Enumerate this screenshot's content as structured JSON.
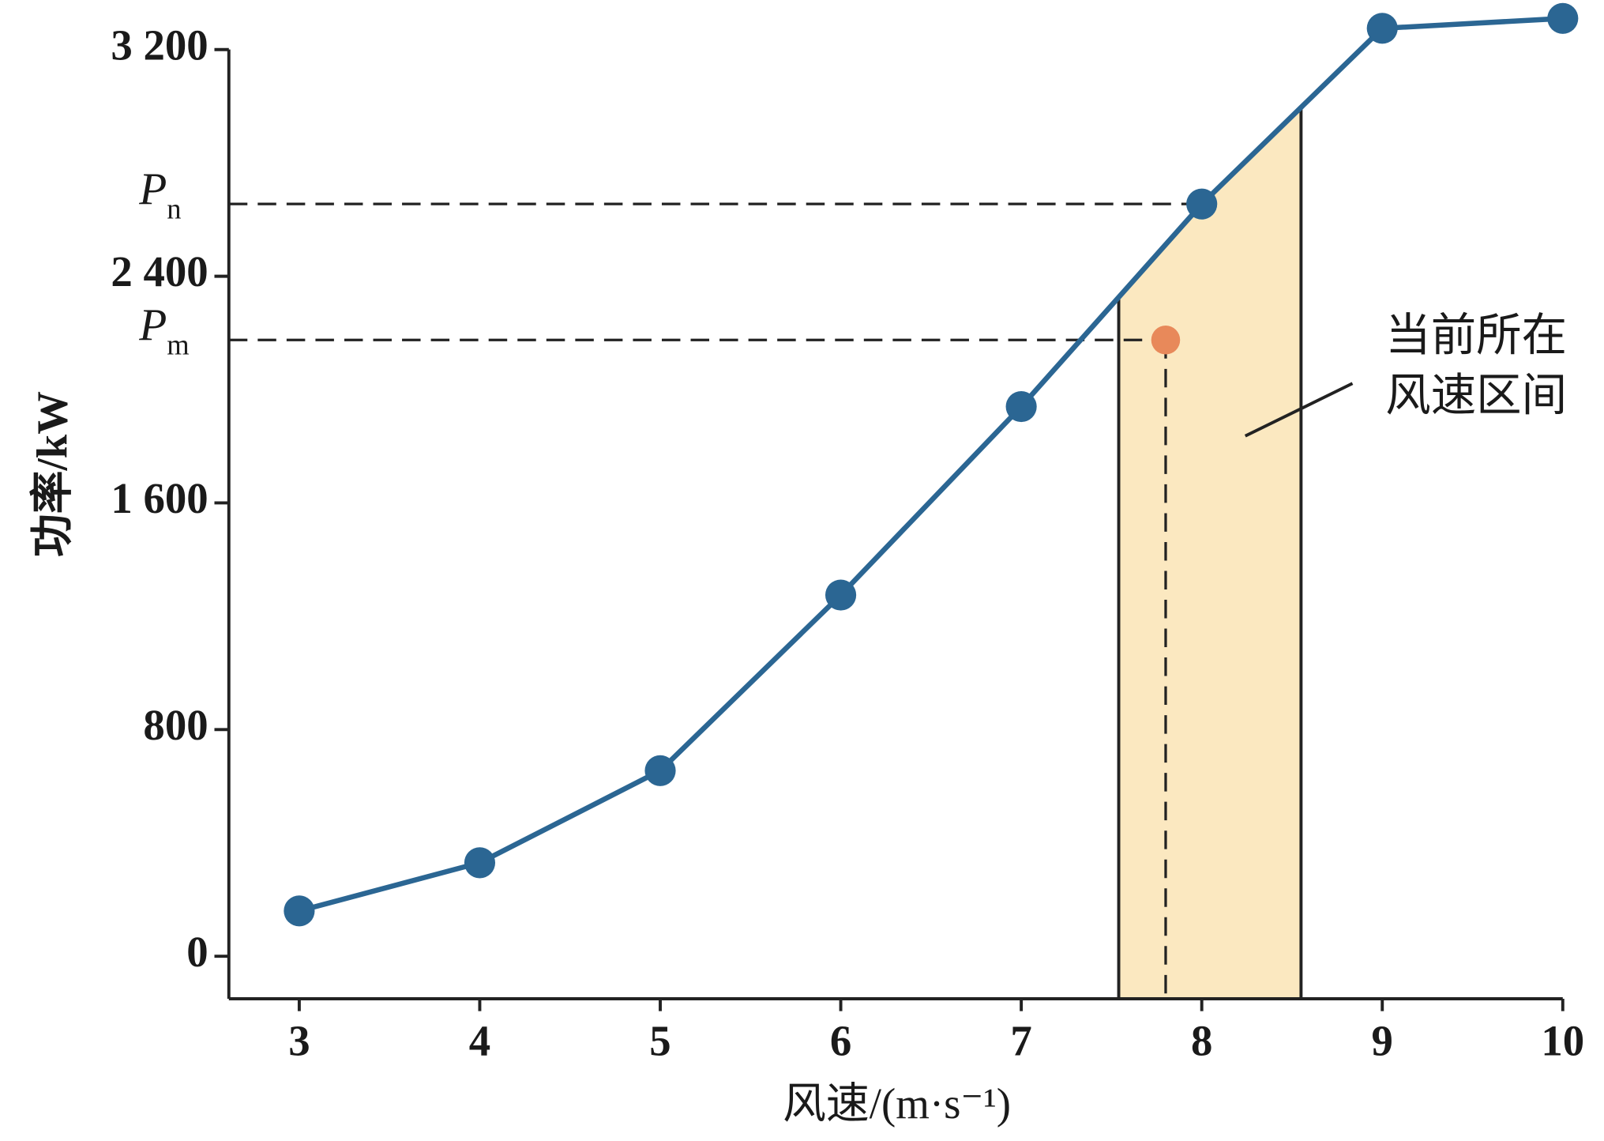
{
  "chart_data": {
    "type": "line",
    "x_label": "风速/(m·s⁻¹)",
    "y_label": "功率/kW",
    "x": [
      3,
      4,
      5,
      6,
      7,
      8,
      9,
      10
    ],
    "series": [
      {
        "color": "#2b6693",
        "values": [
          160,
          330,
          655,
          1275,
          1940,
          2655,
          3275,
          3310
        ]
      }
    ],
    "xlim": [
      2.61,
      10
    ],
    "ylim": [
      -150,
      3375
    ],
    "xticks": [
      3,
      4,
      5,
      6,
      7,
      8,
      9,
      10
    ],
    "yticks": [
      0,
      800,
      {
        "value": 1600,
        "label": "1 600"
      },
      {
        "value": 2400,
        "label": "2 400"
      },
      {
        "value": 3200,
        "label": "3 200"
      }
    ],
    "levels": [
      {
        "value": 2655,
        "label": "P",
        "sub": "n",
        "x_end": 8
      },
      {
        "value": 2175,
        "label": "P",
        "sub": "m",
        "x_end": 7.8
      }
    ],
    "current_point": {
      "x": 7.8,
      "y": 2175,
      "color": "#e8895a"
    },
    "band": {
      "x": [
        7.54,
        8.55
      ],
      "color": "#fbe8c0",
      "label_lines": [
        "当前所在",
        "风速区间"
      ]
    }
  }
}
